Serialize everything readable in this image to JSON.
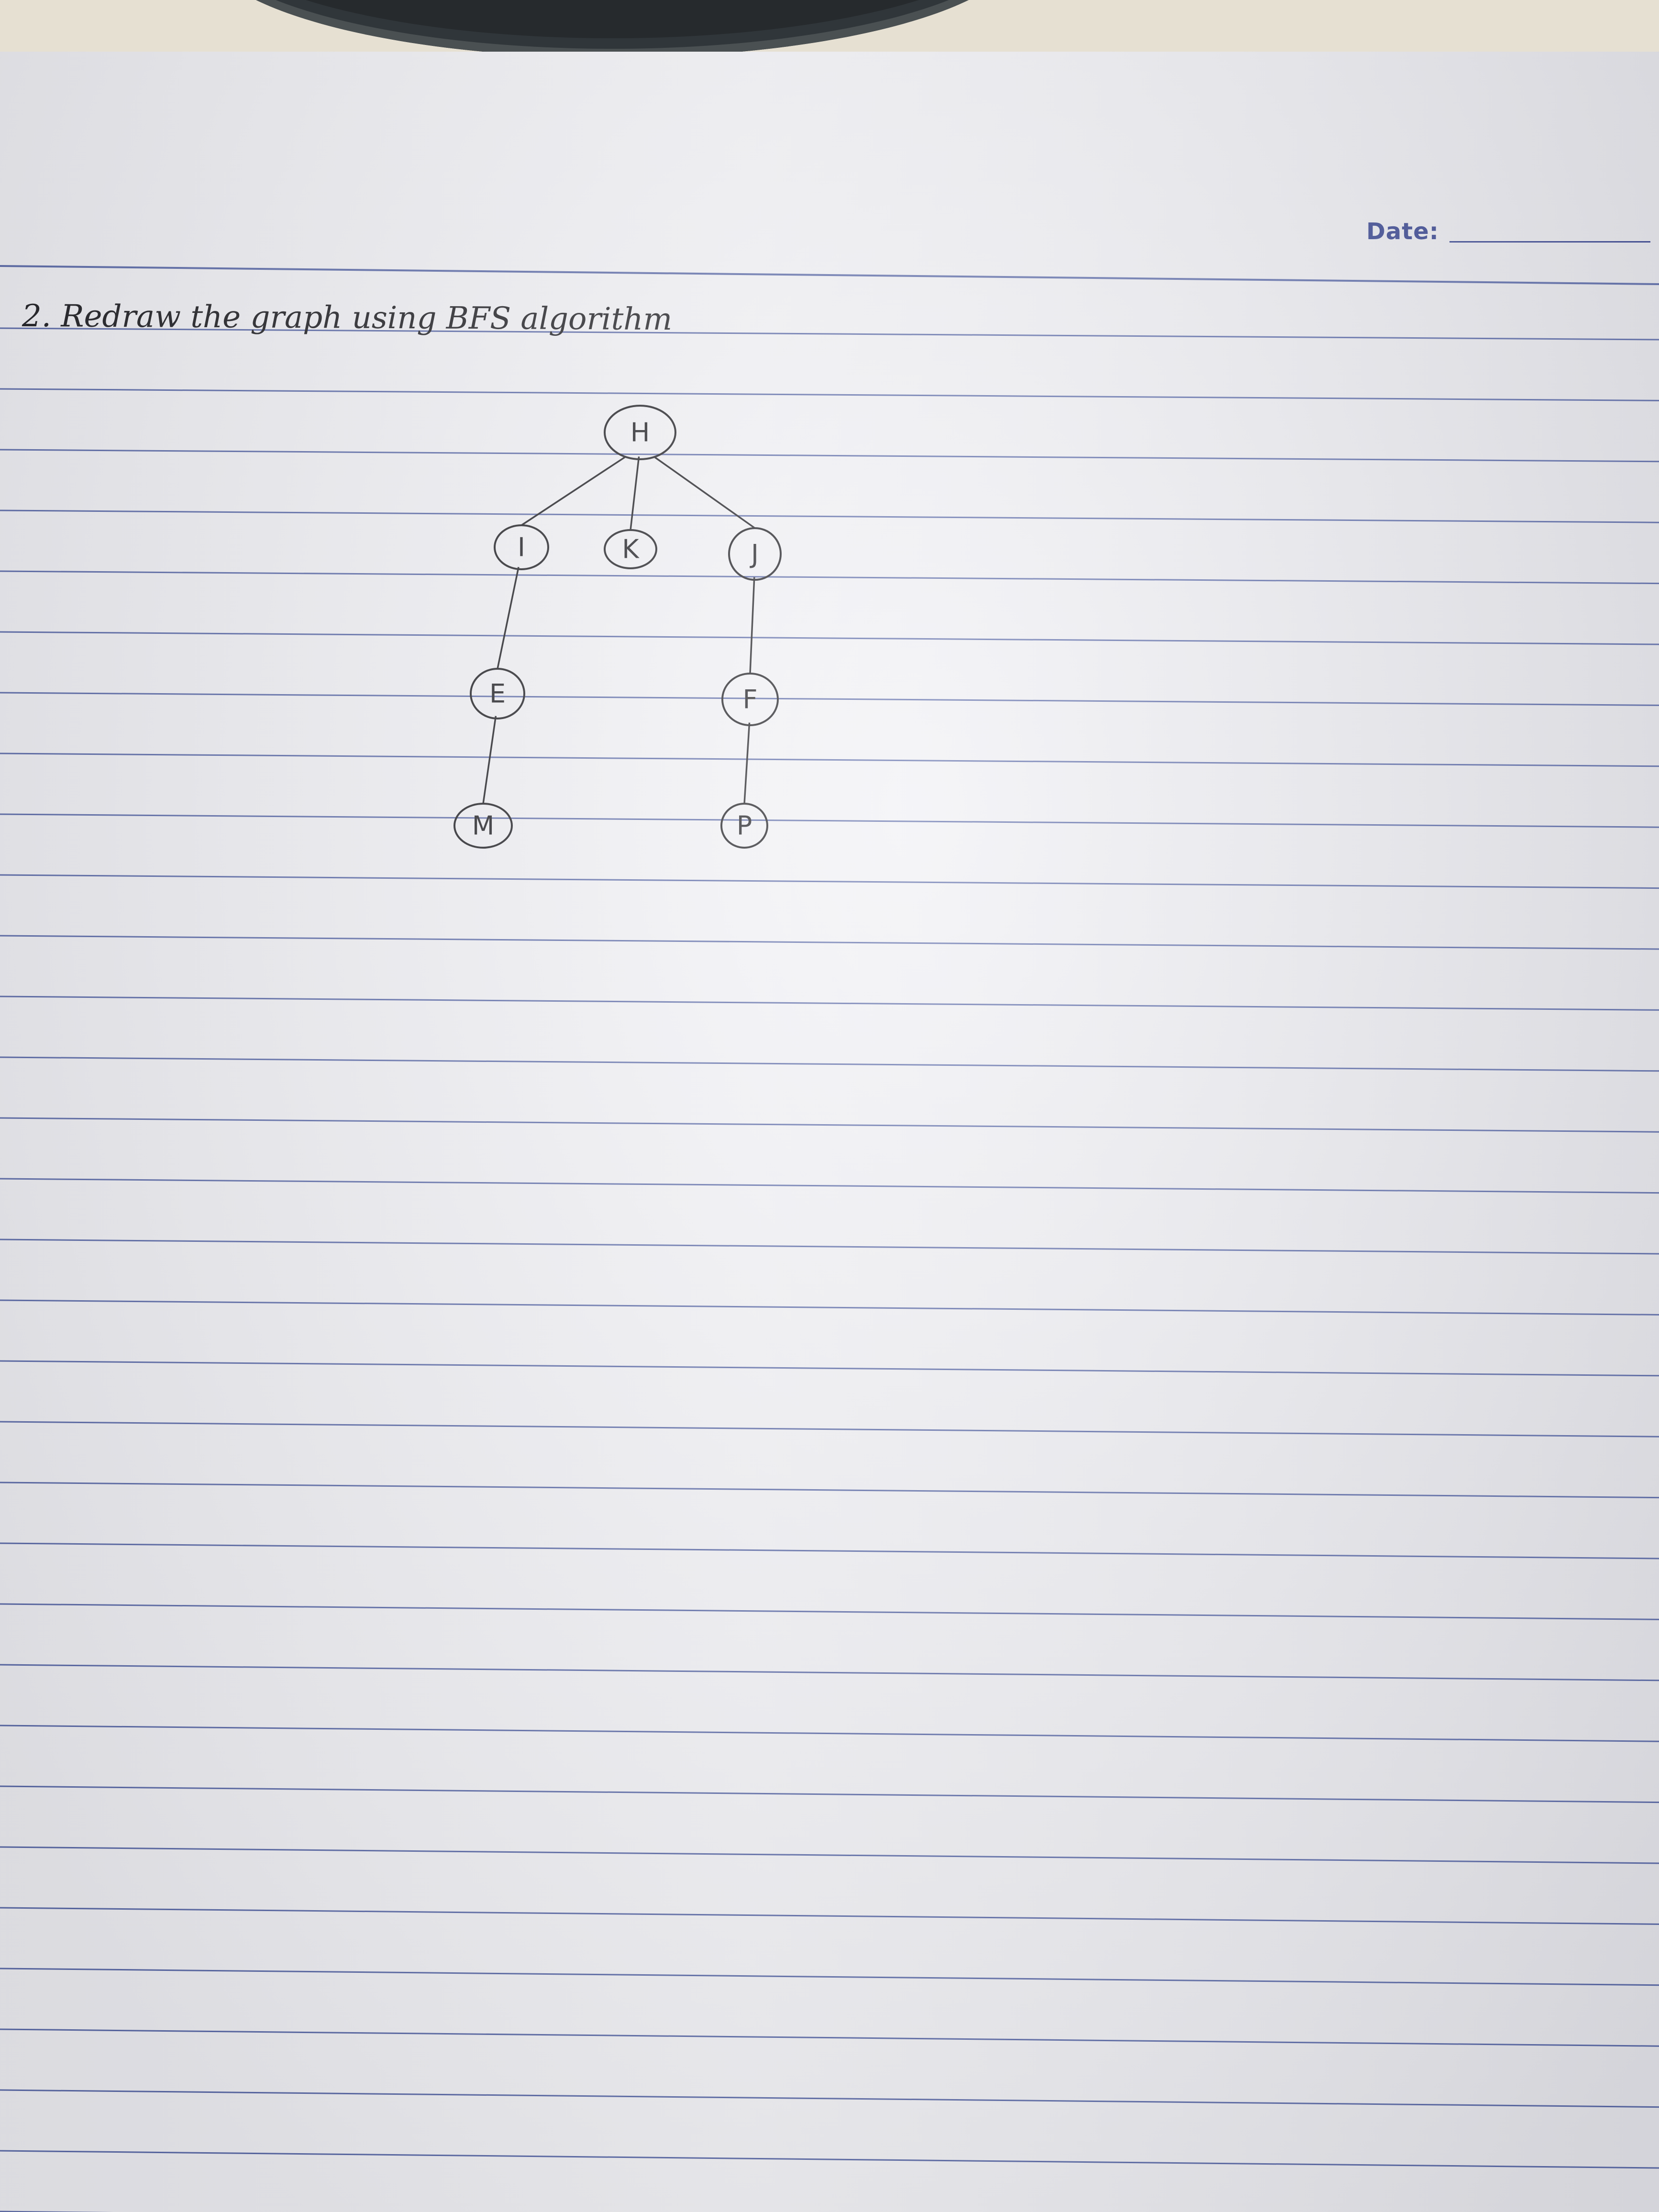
{
  "header": {
    "date_label": "Date:"
  },
  "question": {
    "text": "2. Redraw the graph using BFS algorithm"
  },
  "graph": {
    "nodes": [
      {
        "id": "H",
        "label": "H"
      },
      {
        "id": "I",
        "label": "I"
      },
      {
        "id": "K",
        "label": "K"
      },
      {
        "id": "J",
        "label": "J"
      },
      {
        "id": "E",
        "label": "E"
      },
      {
        "id": "F",
        "label": "F"
      },
      {
        "id": "M",
        "label": "M"
      },
      {
        "id": "P",
        "label": "P"
      }
    ],
    "edges": [
      [
        "H",
        "I"
      ],
      [
        "H",
        "K"
      ],
      [
        "H",
        "J"
      ],
      [
        "I",
        "E"
      ],
      [
        "E",
        "M"
      ],
      [
        "J",
        "F"
      ],
      [
        "F",
        "P"
      ]
    ]
  },
  "colors": {
    "rule_line": "#5b6aa8",
    "ink": "#1a1a1f",
    "header_ink": "#37448f"
  }
}
